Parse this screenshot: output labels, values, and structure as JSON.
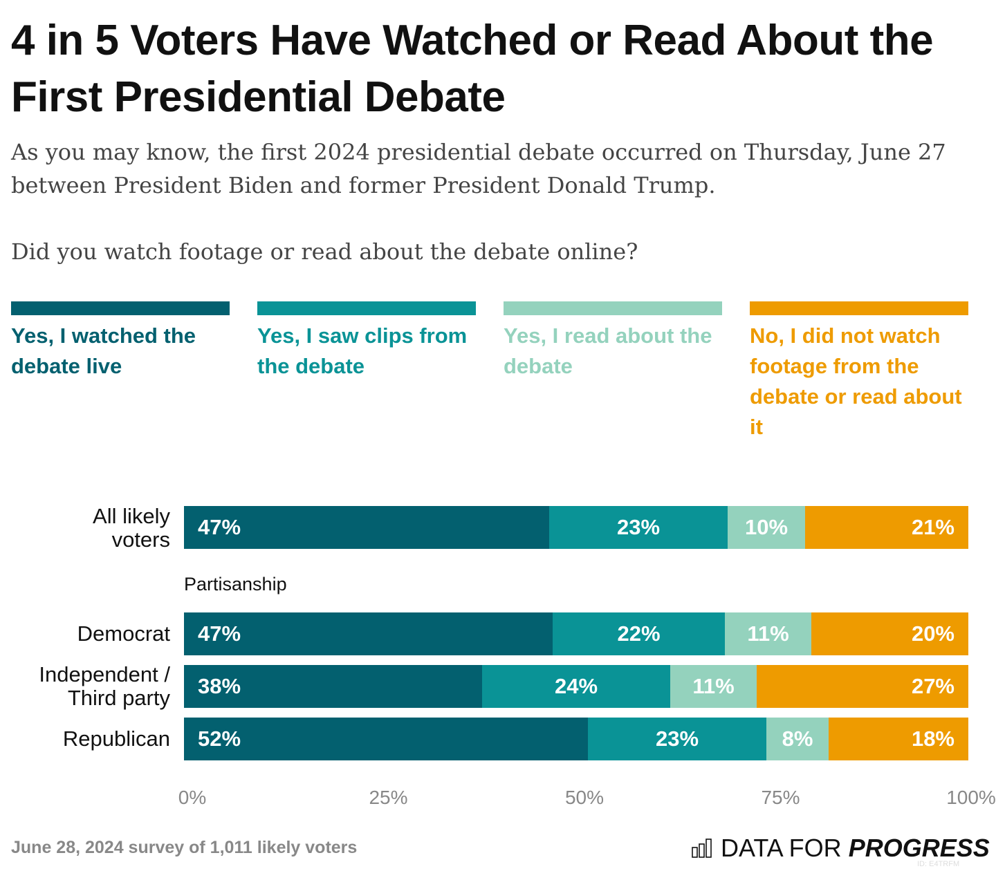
{
  "header": {
    "title": "4 in 5 Voters Have Watched or Read About the First Presidential Debate",
    "subtitle": "As you may know, the first 2024 presidential debate occurred on Thursday, June 27 between President Biden and former President Donald Trump.",
    "question": "Did you watch footage or read about the debate online?"
  },
  "chart_data": {
    "type": "bar",
    "orientation": "horizontal",
    "stacked": true,
    "title": "4 in 5 Voters Have Watched or Read About the First Presidential Debate",
    "xlabel": "",
    "ylabel": "",
    "xlim": [
      0,
      100
    ],
    "x_ticks": [
      "0%",
      "25%",
      "50%",
      "75%",
      "100%"
    ],
    "legend_position": "top",
    "grid": false,
    "series": [
      {
        "name": "Yes, I watched the debate live",
        "color": "#03606F"
      },
      {
        "name": "Yes, I saw clips from the debate",
        "color": "#0A9396"
      },
      {
        "name": "Yes, I read about the debate",
        "color": "#94D2BD"
      },
      {
        "name": "No, I did not watch footage from the debate or read about it",
        "color": "#EE9B00"
      }
    ],
    "rows": [
      {
        "label": "All likely voters",
        "group": "",
        "values": [
          47,
          23,
          10,
          21
        ]
      },
      {
        "label": "Democrat",
        "group": "Partisanship",
        "values": [
          47,
          22,
          11,
          20
        ]
      },
      {
        "label": "Independent / Third party",
        "group": "Partisanship",
        "values": [
          38,
          24,
          11,
          27
        ]
      },
      {
        "label": "Republican",
        "group": "Partisanship",
        "values": [
          52,
          23,
          8,
          18
        ]
      }
    ],
    "group_label": "Partisanship"
  },
  "row_labels": [
    "All likely",
    "voters",
    "Democrat",
    "Independent /",
    "Third party",
    "Republican"
  ],
  "footer": {
    "note": "June 28, 2024 survey of 1,011 likely voters",
    "logo_light": "DATA FOR ",
    "logo_bold": "PROGRESS",
    "chart_id": "ID: E4TRFM"
  }
}
